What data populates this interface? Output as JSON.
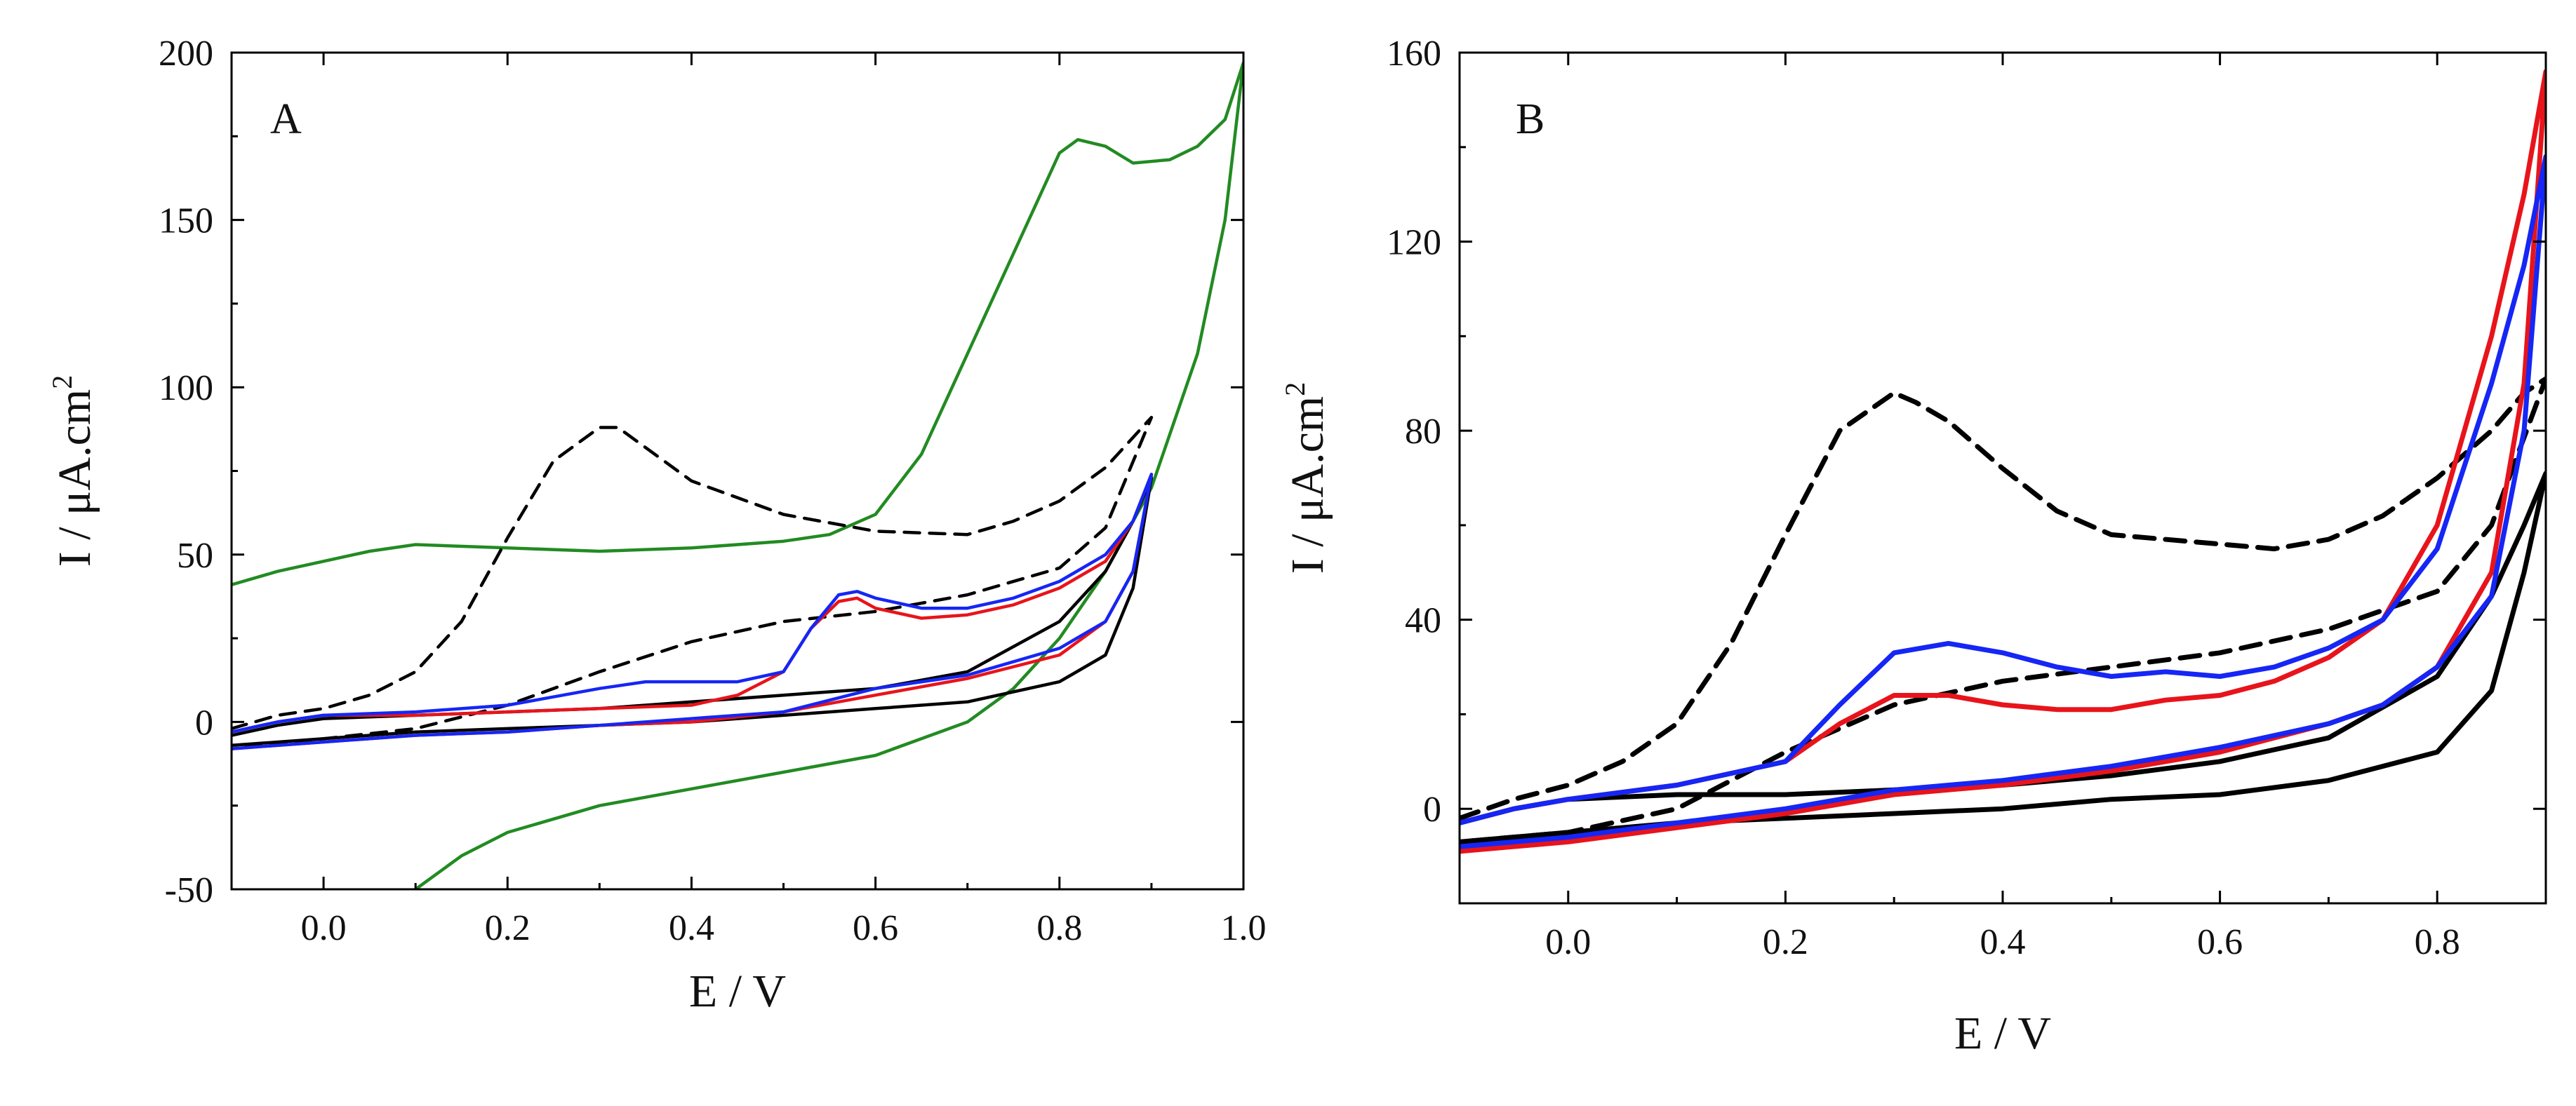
{
  "chart_data": [
    {
      "type": "line",
      "panel_label": "A",
      "xlabel": "E / V",
      "ylabel": "I / μA.cm",
      "ylabel_superscript": "2",
      "xlim": [
        -0.1,
        1.0
      ],
      "ylim": [
        -50,
        200
      ],
      "xticks": [
        0.0,
        0.2,
        0.4,
        0.6,
        0.8,
        1.0
      ],
      "xtick_labels": [
        "0.0",
        "0.2",
        "0.4",
        "0.6",
        "0.8",
        "1.0"
      ],
      "yticks": [
        -50,
        0,
        50,
        100,
        150,
        200
      ],
      "ytick_labels": [
        "-50",
        "0",
        "50",
        "100",
        "150",
        "200"
      ],
      "grid": false,
      "series": [
        {
          "name": "green",
          "color": "#228B22",
          "dash": false,
          "x": [
            -0.1,
            -0.05,
            0.0,
            0.05,
            0.1,
            0.2,
            0.3,
            0.4,
            0.5,
            0.55,
            0.6,
            0.65,
            0.7,
            0.75,
            0.8,
            0.82,
            0.85,
            0.88,
            0.92,
            0.95,
            0.98,
            1.0,
            0.98,
            0.95,
            0.9,
            0.85,
            0.8,
            0.75,
            0.7,
            0.6,
            0.5,
            0.4,
            0.3,
            0.2,
            0.15,
            0.1
          ],
          "y": [
            41,
            45,
            48,
            51,
            53,
            52,
            51,
            52,
            54,
            56,
            62,
            80,
            110,
            140,
            170,
            174,
            172,
            167,
            168,
            172,
            180,
            197,
            150,
            110,
            70,
            45,
            25,
            10,
            0,
            -10,
            -15,
            -20,
            -25,
            -33,
            -40,
            -50
          ]
        },
        {
          "name": "black dashed",
          "color": "#000000",
          "dash": true,
          "x": [
            -0.1,
            -0.05,
            0.0,
            0.05,
            0.1,
            0.15,
            0.2,
            0.25,
            0.3,
            0.32,
            0.35,
            0.4,
            0.5,
            0.6,
            0.7,
            0.75,
            0.8,
            0.85,
            0.9,
            0.85,
            0.8,
            0.7,
            0.6,
            0.5,
            0.4,
            0.3,
            0.2,
            0.1,
            0.0,
            -0.1
          ],
          "y": [
            -2,
            2,
            4,
            8,
            15,
            30,
            55,
            78,
            88,
            88,
            82,
            72,
            62,
            57,
            56,
            60,
            66,
            76,
            91,
            58,
            46,
            38,
            33,
            30,
            24,
            15,
            5,
            -2,
            -5,
            -8
          ]
        },
        {
          "name": "black",
          "color": "#000000",
          "dash": false,
          "x": [
            -0.1,
            -0.05,
            0.0,
            0.1,
            0.2,
            0.3,
            0.4,
            0.5,
            0.6,
            0.7,
            0.8,
            0.85,
            0.88,
            0.9,
            0.88,
            0.85,
            0.8,
            0.7,
            0.6,
            0.5,
            0.4,
            0.3,
            0.2,
            0.1,
            0.0,
            -0.1
          ],
          "y": [
            -4,
            -1,
            1,
            2,
            3,
            4,
            6,
            8,
            10,
            15,
            30,
            45,
            60,
            73,
            40,
            20,
            12,
            6,
            4,
            2,
            0,
            -1,
            -2,
            -3,
            -5,
            -7
          ]
        },
        {
          "name": "red",
          "color": "#E8141B",
          "dash": false,
          "x": [
            -0.1,
            -0.05,
            0.0,
            0.1,
            0.2,
            0.3,
            0.4,
            0.45,
            0.5,
            0.53,
            0.56,
            0.58,
            0.6,
            0.65,
            0.7,
            0.75,
            0.8,
            0.85,
            0.88,
            0.9,
            0.88,
            0.85,
            0.8,
            0.7,
            0.6,
            0.5,
            0.4,
            0.3,
            0.2,
            0.1,
            0.0,
            -0.1
          ],
          "y": [
            -3,
            0,
            2,
            2,
            3,
            4,
            5,
            8,
            15,
            28,
            36,
            37,
            34,
            31,
            32,
            35,
            40,
            48,
            60,
            74,
            45,
            30,
            20,
            13,
            8,
            3,
            0,
            -1,
            -3,
            -4,
            -6,
            -8
          ]
        },
        {
          "name": "blue",
          "color": "#1526F5",
          "dash": false,
          "x": [
            -0.1,
            -0.05,
            0.0,
            0.1,
            0.2,
            0.3,
            0.35,
            0.4,
            0.45,
            0.5,
            0.53,
            0.56,
            0.58,
            0.6,
            0.65,
            0.7,
            0.75,
            0.8,
            0.85,
            0.88,
            0.9,
            0.88,
            0.85,
            0.8,
            0.7,
            0.6,
            0.5,
            0.4,
            0.3,
            0.2,
            0.1,
            0.0,
            -0.1
          ],
          "y": [
            -3,
            0,
            2,
            3,
            5,
            10,
            12,
            12,
            12,
            15,
            28,
            38,
            39,
            37,
            34,
            34,
            37,
            42,
            50,
            60,
            74,
            45,
            30,
            22,
            14,
            10,
            3,
            1,
            -1,
            -3,
            -4,
            -6,
            -8
          ]
        }
      ]
    },
    {
      "type": "line",
      "panel_label": "B",
      "xlabel": "E / V",
      "ylabel": "I / μA.cm",
      "ylabel_superscript": "2",
      "xlim": [
        -0.1,
        0.9
      ],
      "ylim": [
        -20,
        160
      ],
      "xticks": [
        0.0,
        0.2,
        0.4,
        0.6,
        0.8
      ],
      "xtick_labels": [
        "0.0",
        "0.2",
        "0.4",
        "0.6",
        "0.8"
      ],
      "yticks": [
        0,
        40,
        80,
        120,
        160
      ],
      "ytick_labels": [
        "0",
        "40",
        "80",
        "120",
        "160"
      ],
      "grid": false,
      "series": [
        {
          "name": "black dashed",
          "color": "#000000",
          "dash": true,
          "x": [
            -0.1,
            -0.05,
            0.0,
            0.05,
            0.1,
            0.15,
            0.2,
            0.25,
            0.3,
            0.32,
            0.35,
            0.4,
            0.45,
            0.5,
            0.6,
            0.65,
            0.7,
            0.75,
            0.8,
            0.85,
            0.88,
            0.9,
            0.85,
            0.8,
            0.7,
            0.6,
            0.5,
            0.4,
            0.3,
            0.2,
            0.1,
            0.0,
            -0.1
          ],
          "y": [
            -2,
            2,
            5,
            10,
            18,
            35,
            58,
            80,
            88,
            86,
            82,
            72,
            63,
            58,
            56,
            55,
            57,
            62,
            70,
            80,
            88,
            91,
            60,
            46,
            38,
            33,
            30,
            27,
            22,
            12,
            0,
            -5,
            -7
          ]
        },
        {
          "name": "black",
          "color": "#000000",
          "dash": false,
          "x": [
            -0.1,
            -0.05,
            0.0,
            0.1,
            0.2,
            0.3,
            0.4,
            0.5,
            0.6,
            0.7,
            0.8,
            0.85,
            0.88,
            0.9,
            0.88,
            0.85,
            0.8,
            0.7,
            0.6,
            0.5,
            0.4,
            0.3,
            0.2,
            0.1,
            0.0,
            -0.1
          ],
          "y": [
            -3,
            0,
            2,
            3,
            3,
            4,
            5,
            7,
            10,
            15,
            28,
            45,
            60,
            71,
            50,
            25,
            12,
            6,
            3,
            2,
            0,
            -1,
            -2,
            -3,
            -5,
            -7
          ]
        },
        {
          "name": "red",
          "color": "#E8141B",
          "dash": false,
          "x": [
            -0.1,
            -0.05,
            0.0,
            0.1,
            0.2,
            0.25,
            0.3,
            0.35,
            0.4,
            0.45,
            0.5,
            0.55,
            0.6,
            0.65,
            0.7,
            0.75,
            0.8,
            0.85,
            0.88,
            0.9,
            0.88,
            0.85,
            0.8,
            0.75,
            0.7,
            0.6,
            0.5,
            0.4,
            0.3,
            0.2,
            0.1,
            0.0,
            -0.1
          ],
          "y": [
            -3,
            0,
            2,
            5,
            10,
            18,
            24,
            24,
            22,
            21,
            21,
            23,
            24,
            27,
            32,
            40,
            60,
            100,
            130,
            156,
            90,
            50,
            30,
            22,
            18,
            12,
            8,
            5,
            3,
            -1,
            -4,
            -7,
            -9
          ]
        },
        {
          "name": "blue",
          "color": "#1526F5",
          "dash": false,
          "x": [
            -0.1,
            -0.05,
            0.0,
            0.1,
            0.2,
            0.25,
            0.3,
            0.35,
            0.4,
            0.45,
            0.5,
            0.55,
            0.6,
            0.65,
            0.7,
            0.75,
            0.8,
            0.85,
            0.88,
            0.9,
            0.88,
            0.85,
            0.8,
            0.75,
            0.7,
            0.6,
            0.5,
            0.4,
            0.3,
            0.2,
            0.1,
            0.0,
            -0.1
          ],
          "y": [
            -3,
            0,
            2,
            5,
            10,
            22,
            33,
            35,
            33,
            30,
            28,
            29,
            28,
            30,
            34,
            40,
            55,
            90,
            115,
            138,
            80,
            45,
            30,
            22,
            18,
            13,
            9,
            6,
            4,
            0,
            -3,
            -6,
            -8
          ]
        }
      ]
    }
  ]
}
